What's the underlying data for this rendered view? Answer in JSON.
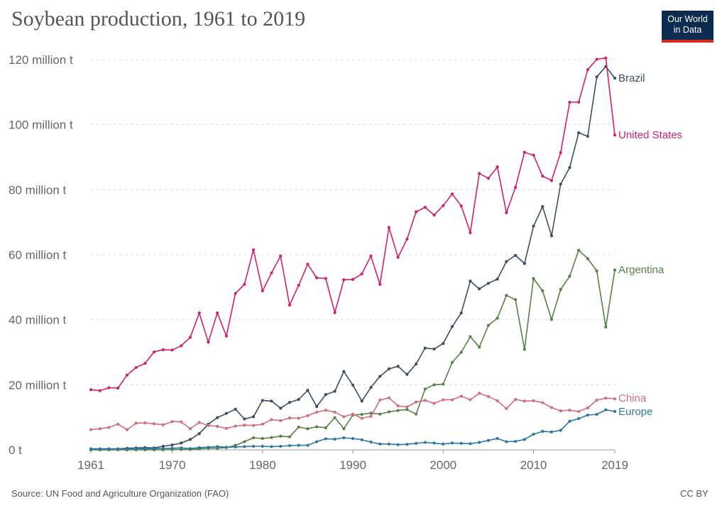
{
  "title": "Soybean production, 1961 to 2019",
  "logo": {
    "line1": "Our World",
    "line2": "in Data",
    "bg": "#0b2c4e",
    "accent": "#d42b21"
  },
  "source": "Source: UN Food and Agriculture Organization (FAO)",
  "license": "CC BY",
  "chart_data": {
    "type": "line",
    "title": "Soybean production, 1961 to 2019",
    "xlabel": "",
    "ylabel": "",
    "xlim": [
      1961,
      2019
    ],
    "ylim": [
      0,
      120
    ],
    "grid": true,
    "y_ticks": [
      {
        "value": 0,
        "label": "0 t"
      },
      {
        "value": 20,
        "label": "20 million t"
      },
      {
        "value": 40,
        "label": "40 million t"
      },
      {
        "value": 60,
        "label": "60 million t"
      },
      {
        "value": 80,
        "label": "80 million t"
      },
      {
        "value": 100,
        "label": "100 million t"
      },
      {
        "value": 120,
        "label": "120 million t"
      }
    ],
    "x_ticks": [
      {
        "value": 1961,
        "label": "1961"
      },
      {
        "value": 1970,
        "label": "1970"
      },
      {
        "value": 1980,
        "label": "1980"
      },
      {
        "value": 1990,
        "label": "1990"
      },
      {
        "value": 2000,
        "label": "2000"
      },
      {
        "value": 2010,
        "label": "2010"
      },
      {
        "value": 2019,
        "label": "2019"
      }
    ],
    "x": [
      1961,
      1962,
      1963,
      1964,
      1965,
      1966,
      1967,
      1968,
      1969,
      1970,
      1971,
      1972,
      1973,
      1974,
      1975,
      1976,
      1977,
      1978,
      1979,
      1980,
      1981,
      1982,
      1983,
      1984,
      1985,
      1986,
      1987,
      1988,
      1989,
      1990,
      1991,
      1992,
      1993,
      1994,
      1995,
      1996,
      1997,
      1998,
      1999,
      2000,
      2001,
      2002,
      2003,
      2004,
      2005,
      2006,
      2007,
      2008,
      2009,
      2010,
      2011,
      2012,
      2013,
      2014,
      2015,
      2016,
      2017,
      2018,
      2019
    ],
    "series": [
      {
        "name": "Brazil",
        "color": "#3c4e66",
        "values": [
          0.3,
          0.3,
          0.3,
          0.3,
          0.5,
          0.6,
          0.7,
          0.6,
          1.1,
          1.5,
          2.1,
          3.2,
          5.0,
          7.9,
          9.9,
          11.2,
          12.5,
          9.5,
          10.2,
          15.2,
          15.0,
          12.8,
          14.6,
          15.5,
          18.3,
          13.3,
          17.0,
          18.0,
          24.1,
          19.9,
          15.0,
          19.2,
          22.6,
          24.9,
          25.7,
          23.2,
          26.4,
          31.3,
          31.0,
          32.7,
          37.9,
          42.1,
          51.9,
          49.5,
          51.2,
          52.5,
          57.9,
          59.8,
          57.3,
          68.8,
          74.8,
          65.8,
          81.7,
          86.8,
          97.5,
          96.4,
          114.7,
          117.9,
          114.3
        ]
      },
      {
        "name": "United States",
        "color": "#d0206e",
        "values": [
          18.5,
          18.2,
          19.1,
          19.0,
          23.0,
          25.3,
          26.6,
          30.1,
          30.8,
          30.7,
          32.0,
          34.6,
          42.1,
          33.1,
          42.1,
          35.0,
          48.1,
          50.9,
          61.5,
          48.9,
          54.4,
          59.6,
          44.5,
          50.6,
          57.1,
          52.9,
          52.7,
          42.2,
          52.3,
          52.4,
          54.1,
          59.6,
          50.9,
          68.4,
          59.2,
          64.8,
          73.2,
          74.6,
          72.2,
          75.1,
          78.7,
          75.0,
          66.8,
          85.0,
          83.5,
          87.0,
          72.9,
          80.7,
          91.5,
          90.6,
          84.2,
          82.8,
          91.4,
          106.9,
          106.9,
          116.9,
          120.1,
          120.5,
          96.8
        ]
      },
      {
        "name": "Argentina",
        "color": "#578145",
        "values": [
          0.0,
          0.0,
          0.0,
          0.0,
          0.0,
          0.0,
          0.0,
          0.0,
          0.0,
          0.1,
          0.1,
          0.1,
          0.3,
          0.5,
          0.5,
          0.7,
          1.4,
          2.5,
          3.7,
          3.5,
          3.8,
          4.2,
          4.0,
          7.0,
          6.5,
          7.1,
          6.8,
          9.9,
          6.5,
          10.7,
          10.9,
          11.3,
          11.0,
          11.7,
          12.1,
          12.4,
          11.0,
          18.7,
          20.0,
          20.2,
          26.9,
          30.0,
          34.8,
          31.6,
          38.3,
          40.5,
          47.5,
          46.2,
          30.9,
          52.7,
          48.9,
          40.1,
          49.3,
          53.4,
          61.4,
          58.8,
          55.0,
          37.8,
          55.3
        ]
      },
      {
        "name": "China",
        "color": "#d26d80",
        "values": [
          6.2,
          6.5,
          6.9,
          7.9,
          6.2,
          8.2,
          8.3,
          8.0,
          7.7,
          8.7,
          8.6,
          6.5,
          8.4,
          7.5,
          7.2,
          6.6,
          7.3,
          7.6,
          7.5,
          7.9,
          9.3,
          9.0,
          9.8,
          9.7,
          10.5,
          11.6,
          12.2,
          11.6,
          10.2,
          11.0,
          9.7,
          10.3,
          15.3,
          16.0,
          13.5,
          13.2,
          14.7,
          15.2,
          14.3,
          15.4,
          15.4,
          16.5,
          15.4,
          17.4,
          16.4,
          15.1,
          12.7,
          15.5,
          15.0,
          15.1,
          14.5,
          13.0,
          12.0,
          12.2,
          11.8,
          12.9,
          15.3,
          15.9,
          15.7
        ]
      },
      {
        "name": "Europe",
        "color": "#2b78a4",
        "values": [
          0.2,
          0.2,
          0.2,
          0.3,
          0.3,
          0.4,
          0.3,
          0.4,
          0.4,
          0.5,
          0.6,
          0.4,
          0.7,
          0.8,
          1.0,
          0.8,
          0.9,
          1.0,
          1.1,
          1.1,
          1.0,
          1.1,
          1.3,
          1.4,
          1.4,
          2.5,
          3.4,
          3.3,
          3.7,
          3.5,
          3.1,
          2.4,
          1.8,
          1.8,
          1.6,
          1.7,
          2.0,
          2.3,
          2.1,
          1.8,
          2.1,
          2.0,
          1.9,
          2.3,
          2.9,
          3.5,
          2.5,
          2.6,
          3.2,
          4.8,
          5.7,
          5.5,
          6.0,
          8.8,
          9.6,
          10.7,
          10.9,
          12.3,
          11.8
        ]
      }
    ]
  }
}
